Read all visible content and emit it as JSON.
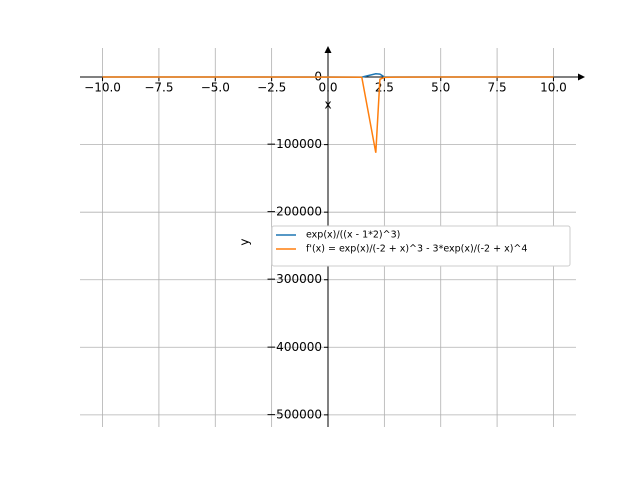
{
  "chart_data": {
    "type": "line",
    "x_label": "x",
    "y_label": "y",
    "x": [
      -10,
      -5,
      0,
      1,
      1.5,
      2.12,
      2.3,
      2.5,
      3,
      5,
      7.5,
      10
    ],
    "series": [
      {
        "name": "exp(x)/((x - 1*2)^3)",
        "color": "#1f77b4",
        "values": [
          0,
          0,
          -0.125,
          -2.72,
          -35.9,
          4820,
          4400,
          97.5,
          20.1,
          5.5,
          10.9,
          43
        ]
      },
      {
        "name": "f'(x) = exp(x)/(-2 + x)^3 - 3*exp(x)/(-2 + x)^4",
        "color": "#ff7f0e",
        "values": [
          0,
          0,
          -0.31,
          -10.9,
          -251,
          -112000,
          -3323,
          -487,
          -40,
          0,
          12,
          137
        ]
      }
    ],
    "xlim": [
      -11,
      11
    ],
    "ylim": [
      -518000,
      43000
    ],
    "xticks": [
      {
        "value": -10,
        "label": "−10.0"
      },
      {
        "value": -7.5,
        "label": "−7.5"
      },
      {
        "value": -5,
        "label": "−5.0"
      },
      {
        "value": -2.5,
        "label": "−2.5"
      },
      {
        "value": 0,
        "label": "0.0"
      },
      {
        "value": 2.5,
        "label": "2.5"
      },
      {
        "value": 5,
        "label": "5.0"
      },
      {
        "value": 7.5,
        "label": "7.5"
      },
      {
        "value": 10,
        "label": "10.0"
      }
    ],
    "yticks": [
      0,
      {
        "value": -100000,
        "label": "−100000"
      },
      {
        "value": -200000,
        "label": "−200000"
      },
      {
        "value": -300000,
        "label": "−300000"
      },
      {
        "value": -400000,
        "label": "−400000"
      },
      {
        "value": -500000,
        "label": "−500000"
      }
    ],
    "grid": true,
    "legend_loc": "center right"
  }
}
